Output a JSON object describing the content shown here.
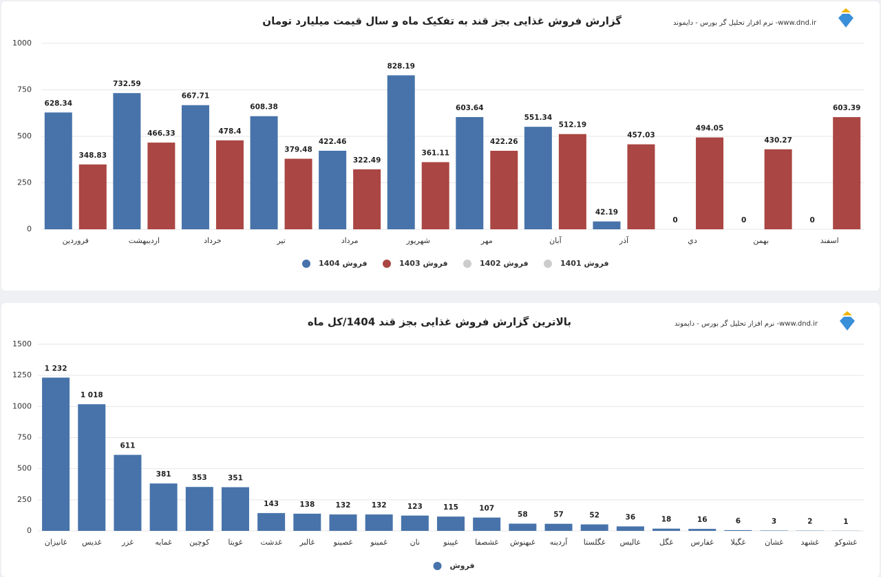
{
  "chart_data": [
    {
      "type": "bar",
      "title": "گزارش فروش غذایی بجز قند به تفکیک ماه و سال قیمت میلیارد تومان",
      "source": "نرم افزار تحلیل گر بورس - دایموند -www.dnd.ir",
      "categories": [
        "فروردین",
        "اردیبهشت",
        "خرداد",
        "تیر",
        "مرداد",
        "شهریور",
        "مهر",
        "آبان",
        "آذر",
        "دي",
        "بهمن",
        "اسفند"
      ],
      "series": [
        {
          "name": "فروش 1404",
          "color": "#4773aa",
          "values": [
            628.34,
            732.59,
            667.71,
            608.38,
            422.46,
            828.19,
            603.64,
            551.34,
            42.19,
            0,
            0,
            0
          ]
        },
        {
          "name": "فروش 1403",
          "color": "#aa4643",
          "values": [
            348.83,
            466.33,
            478.4,
            379.48,
            322.49,
            361.11,
            422.26,
            512.19,
            457.03,
            494.05,
            430.27,
            603.39
          ]
        },
        {
          "name": "فروش 1402",
          "color": "#cccccc",
          "hidden": true
        },
        {
          "name": "فروش 1401",
          "color": "#cccccc",
          "hidden": true
        }
      ],
      "ylim": [
        0,
        1000
      ],
      "yticks": [
        0,
        250,
        500,
        750,
        1000
      ],
      "grid": true
    },
    {
      "type": "bar",
      "title": "بالاترین گزارش فروش غذایی بجز قند 1404/کل ماه",
      "source": "نرم افزار تحلیل گر بورس - دایموند -www.dnd.ir",
      "categories": [
        "غانیزان",
        "غدیس",
        "غزر",
        "غمایه",
        "کوچین",
        "غویتا",
        "غدشت",
        "غالبر",
        "غصینو",
        "غمینو",
        "نان",
        "غپینو",
        "غشصفا",
        "غبهنوش",
        "آردینه",
        "غگلستا",
        "عالیس",
        "غگل",
        "غفارس",
        "غگیلا",
        "غشان",
        "غشهد",
        "غشوکو"
      ],
      "series": [
        {
          "name": "فروش",
          "color": "#4773aa",
          "values": [
            1232,
            1018,
            611,
            381,
            353,
            351,
            143,
            138,
            132,
            132,
            123,
            115,
            107,
            58,
            57,
            52,
            36,
            18,
            16,
            6,
            3,
            2,
            1
          ],
          "value_labels": [
            "1 232",
            "1 018",
            "611",
            "381",
            "353",
            "351",
            "143",
            "138",
            "132",
            "132",
            "123",
            "115",
            "107",
            "58",
            "57",
            "52",
            "36",
            "18",
            "16",
            "6",
            "3",
            "2",
            "1"
          ]
        }
      ],
      "ylim": [
        0,
        1500
      ],
      "yticks": [
        0,
        250,
        500,
        750,
        1000,
        1250,
        1500
      ],
      "grid": true
    }
  ]
}
